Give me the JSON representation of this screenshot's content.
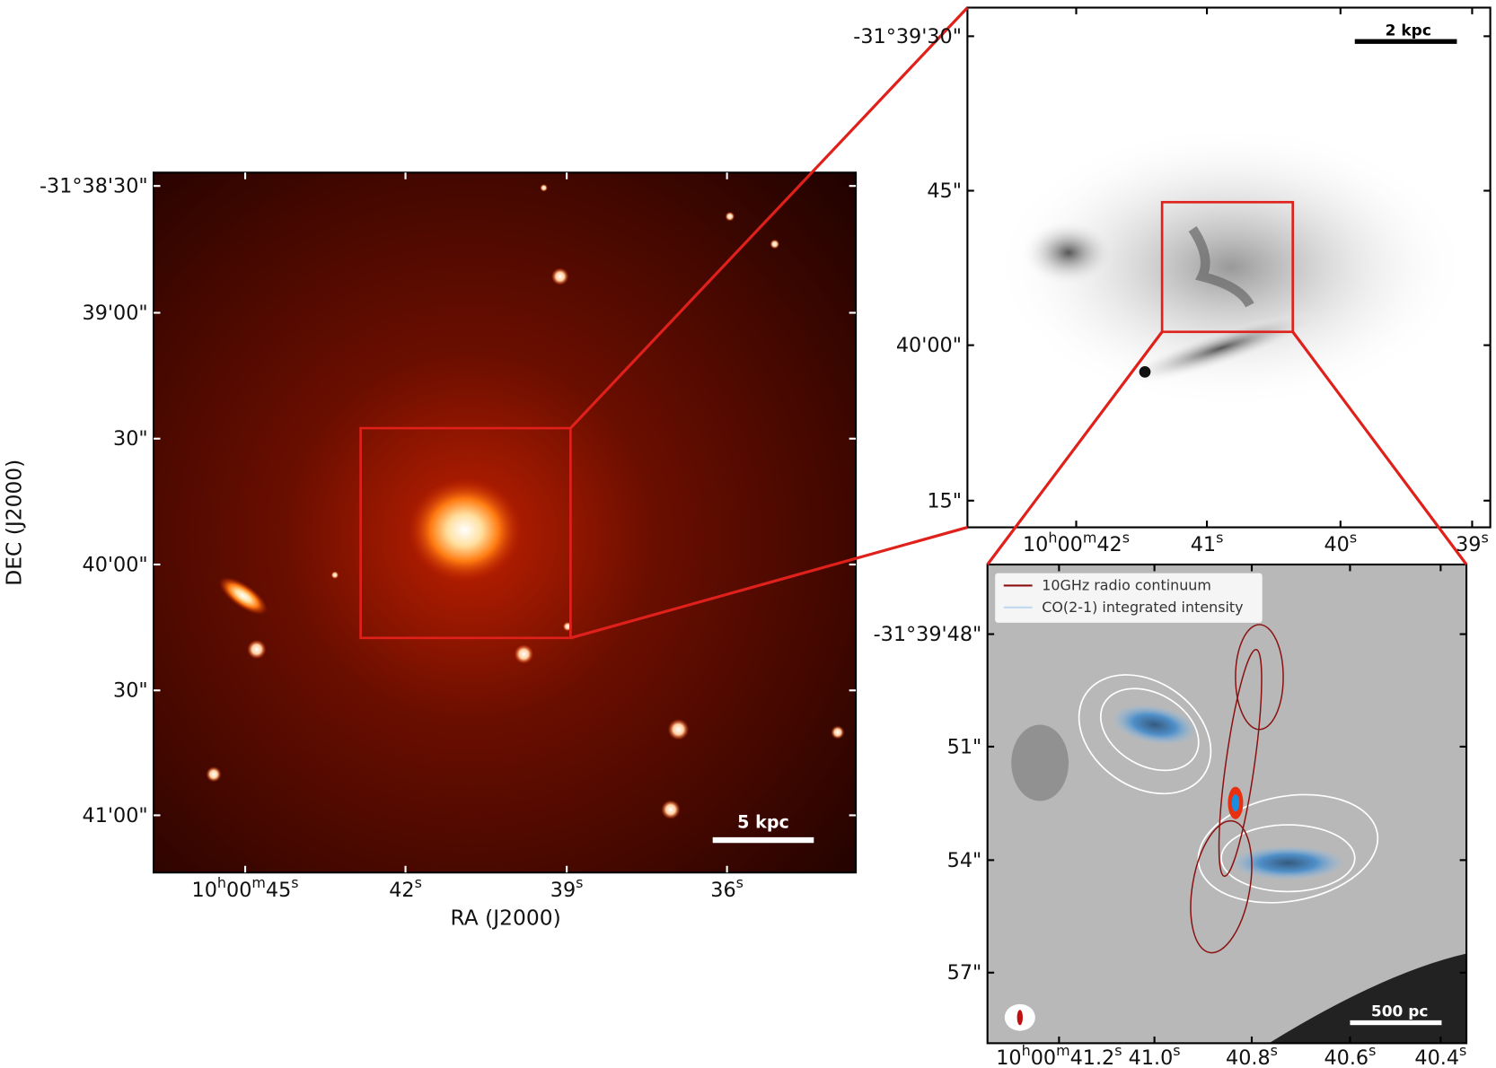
{
  "left_panel": {
    "x_ticks": [
      [
        "10",
        "h",
        "00",
        "m",
        "45",
        "s"
      ],
      [
        "42",
        "s"
      ],
      [
        "39",
        "s"
      ],
      [
        "36",
        "s"
      ]
    ],
    "y_ticks": [
      "-31°38'30\"",
      "39'00\"",
      "30\"",
      "40'00\"",
      "30\"",
      "41'00\""
    ],
    "x_label": "RA (J2000)",
    "y_label": "DEC (J2000)",
    "scale_bar": "5 kpc"
  },
  "top_right_panel": {
    "x_ticks": [
      [
        "10",
        "h",
        "00",
        "m",
        "42",
        "s"
      ],
      [
        "41",
        "s"
      ],
      [
        "40",
        "s"
      ],
      [
        "39",
        "s"
      ]
    ],
    "y_ticks": [
      "-31°39'30\"",
      "45\"",
      "40'00\"",
      "15\""
    ],
    "scale_bar": "2 kpc"
  },
  "bottom_right_panel": {
    "x_ticks": [
      [
        "10",
        "h",
        "00",
        "m",
        "41.2",
        "s"
      ],
      [
        "41.0",
        "s"
      ],
      [
        "40.8",
        "s"
      ],
      [
        "40.6",
        "s"
      ],
      [
        "40.4",
        "s"
      ]
    ],
    "y_ticks": [
      "-31°39'48\"",
      "51\"",
      "54\"",
      "57\""
    ],
    "legend": [
      "10GHz radio continuum",
      "CO(2-1) integrated intensity"
    ],
    "scale_bar": "500 pc"
  }
}
